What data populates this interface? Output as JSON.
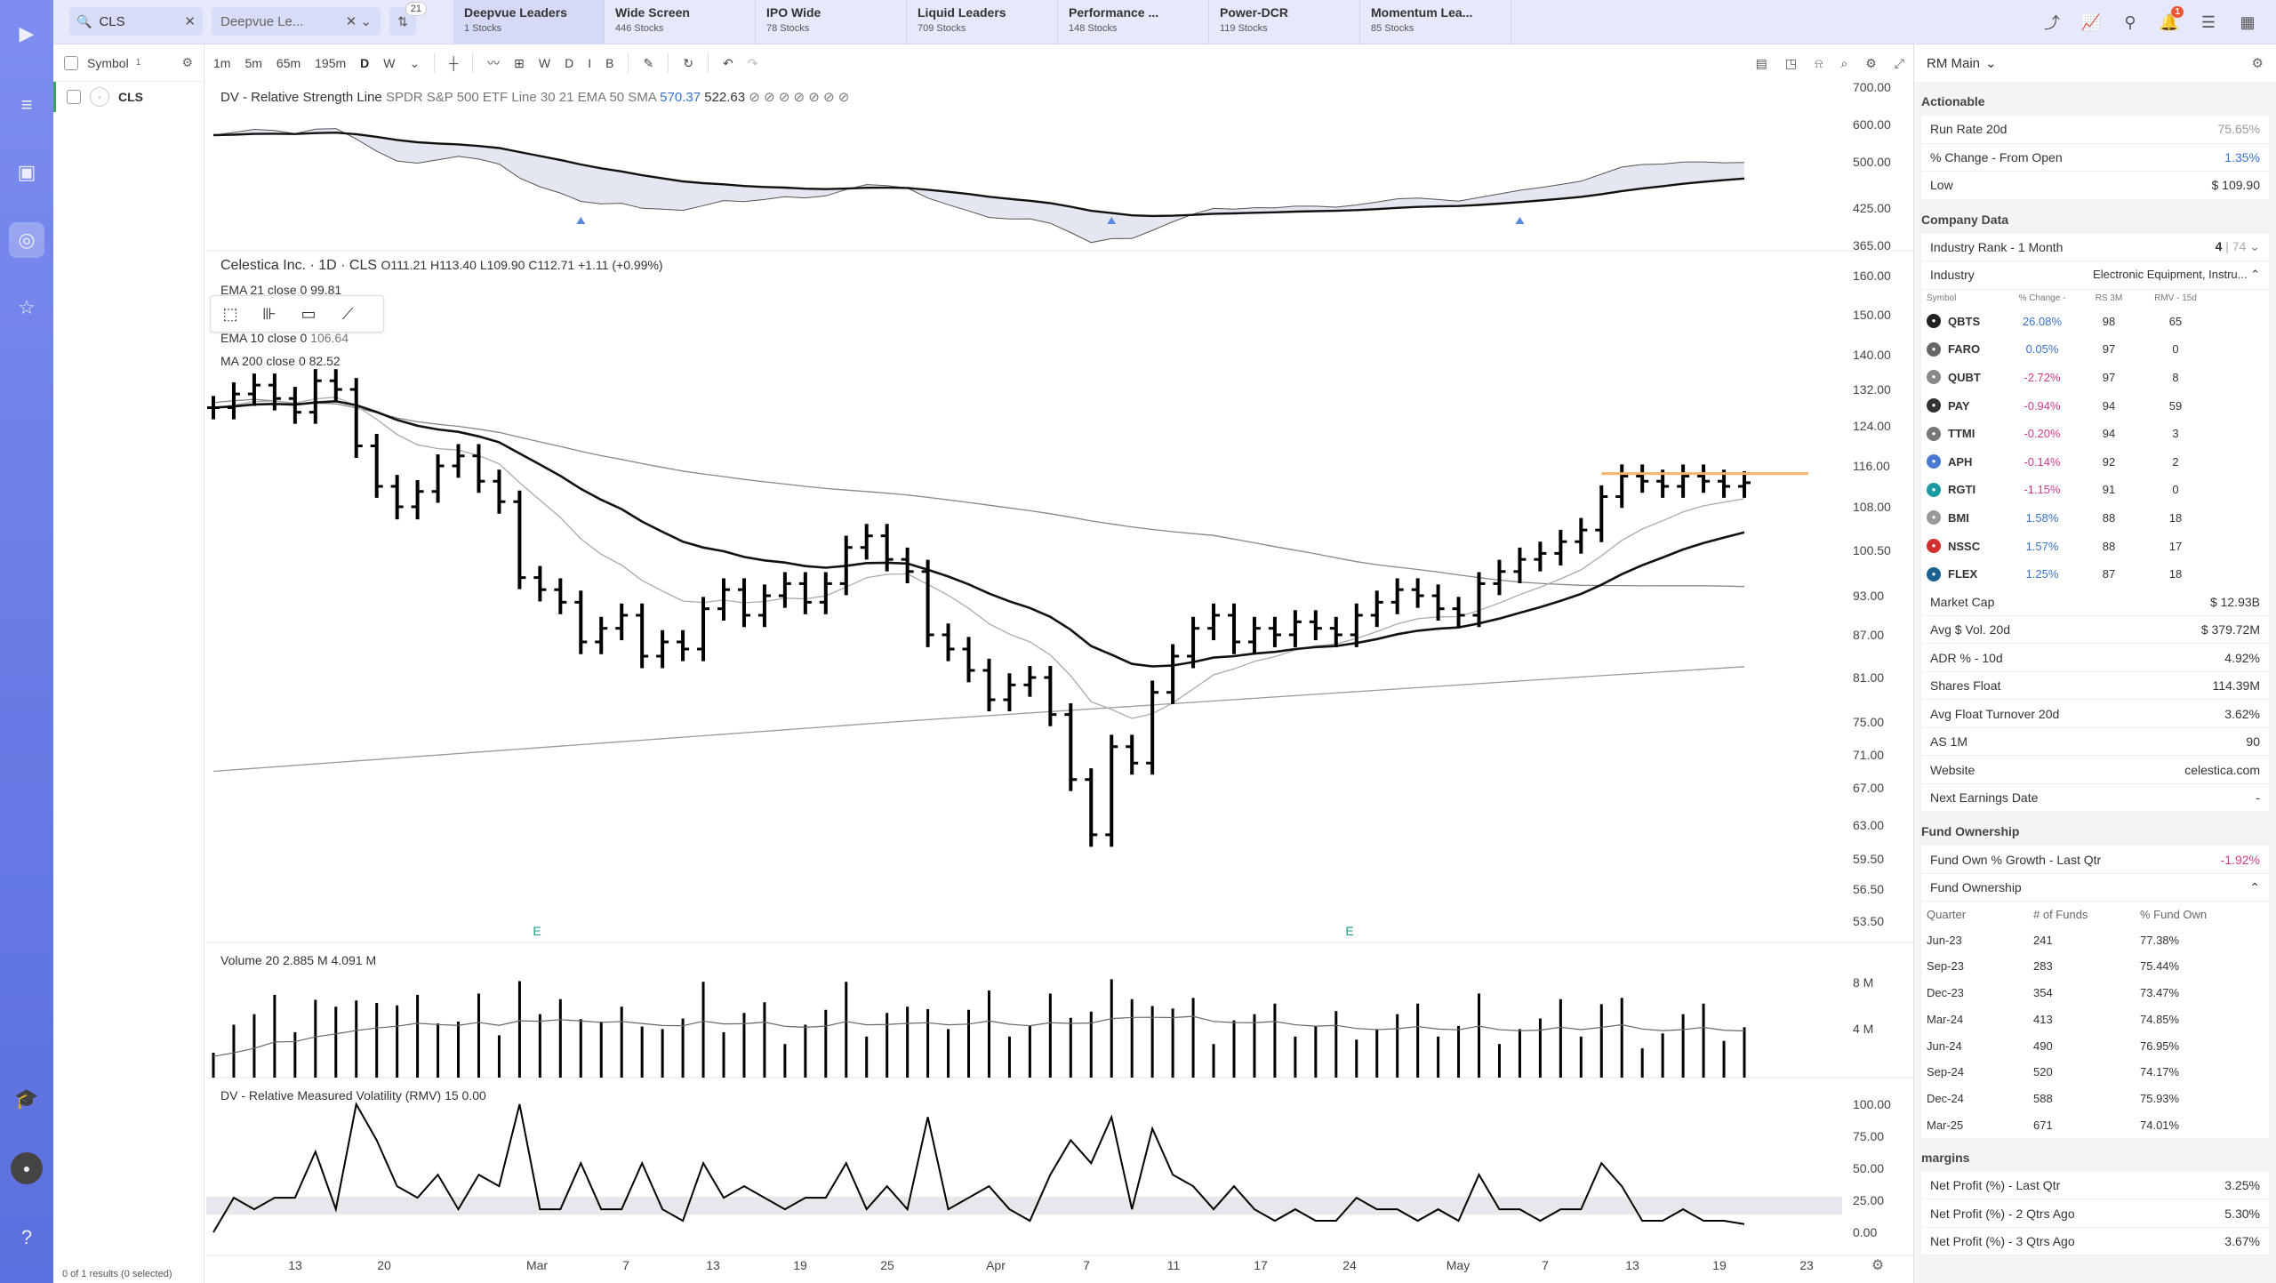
{
  "nav": {
    "items": [
      "logo-icon",
      "menu-icon",
      "layout-icon",
      "target-icon",
      "star-icon",
      "course-icon",
      "avatar",
      "help-icon"
    ]
  },
  "topbar": {
    "search_value": "CLS",
    "watchlist_placeholder": "Deepvue Le...",
    "filter_count": "21",
    "tabs": [
      {
        "title": "Deepvue Leaders",
        "sub": "1 Stocks"
      },
      {
        "title": "Wide Screen",
        "sub": "446 Stocks"
      },
      {
        "title": "IPO Wide",
        "sub": "78 Stocks"
      },
      {
        "title": "Liquid Leaders",
        "sub": "709 Stocks"
      },
      {
        "title": "Performance ...",
        "sub": "148 Stocks"
      },
      {
        "title": "Power-DCR",
        "sub": "119 Stocks"
      },
      {
        "title": "Momentum Lea...",
        "sub": "85 Stocks"
      }
    ],
    "notif_count": "1"
  },
  "watchlist": {
    "header_label": "Symbol",
    "header_count": "1",
    "rows": [
      {
        "symbol": "CLS"
      }
    ],
    "footer": "0 of 1 results (0 selected)"
  },
  "toolbar": {
    "timeframes": [
      "1m",
      "5m",
      "65m",
      "195m",
      "D",
      "W"
    ],
    "active_tf": "D",
    "periods": [
      "W",
      "D",
      "I",
      "B"
    ]
  },
  "chart": {
    "rs_legend": {
      "name": "DV - Relative Strength Line",
      "desc": "SPDR S&P 500 ETF Line 30 21 EMA 50 SMA",
      "v1": "570.37",
      "v2": "522.63"
    },
    "rs_axis": [
      "700.00",
      "600.00",
      "500.00",
      "425.00",
      "365.00"
    ],
    "title": "Celestica Inc. · 1D · CLS",
    "ohlc": "O111.21 H113.40 L109.90 C112.71 +1.11 (+0.99%)",
    "ma_legends": [
      {
        "label": "EMA 21 close 0",
        "value": "99.81"
      },
      {
        "label": "EMA 10 close 0",
        "value": "106.64"
      },
      {
        "label": "MA 200 close 0",
        "value": "82.52"
      }
    ],
    "price_axis": [
      "160.00",
      "150.00",
      "140.00",
      "132.00",
      "124.00",
      "116.00",
      "108.00",
      "100.50",
      "93.00",
      "87.00",
      "81.00",
      "75.00",
      "71.00",
      "67.00",
      "63.00",
      "59.50",
      "56.50",
      "53.50"
    ],
    "earnings_marker": "E",
    "volume_legend": {
      "label": "Volume 20",
      "v1": "2.885 M",
      "v2": "4.091 M"
    },
    "volume_axis": [
      "8 M",
      "4 M"
    ],
    "rmv_legend": {
      "label": "DV - Relative Measured Volatility (RMV) 15",
      "value": "0.00"
    },
    "rmv_axis": [
      "100.00",
      "75.00",
      "50.00",
      "25.00",
      "0.00"
    ],
    "x_labels": [
      "13",
      "20",
      "Mar",
      "7",
      "13",
      "19",
      "25",
      "Apr",
      "7",
      "11",
      "17",
      "24",
      "May",
      "7",
      "13",
      "19",
      "23"
    ]
  },
  "chart_data": {
    "type": "bar",
    "title": "Celestica Inc. · 1D · CLS",
    "note": "Daily OHLC bars from mid Feb to May 20, 2025 with EMA 10, EMA 21, MA 50, MA 200; volume and RMV panes",
    "close_series": [
      128,
      131,
      133,
      130,
      127,
      134,
      132,
      120,
      112,
      108,
      111,
      116,
      118,
      113,
      109,
      96,
      94,
      92,
      86,
      88,
      90,
      84,
      86,
      85,
      91,
      94,
      90,
      93,
      95,
      92,
      95,
      101,
      103,
      99,
      97,
      87,
      85,
      82,
      78,
      80,
      81,
      76,
      68,
      62,
      72,
      70,
      79,
      84,
      88,
      90,
      86,
      88,
      87,
      89,
      88,
      87,
      90,
      92,
      94,
      93,
      91,
      90,
      95,
      97,
      99,
      100,
      102,
      104,
      110,
      114,
      113,
      112,
      114,
      113,
      112,
      112.71
    ],
    "ema21_last": 99.81,
    "ema10_last": 106.64,
    "ma200_last": 82.52,
    "volume_last_m": 2.885,
    "volume_avg_m": 4.091,
    "ylim": [
      53.5,
      160
    ]
  },
  "rpanel": {
    "title": "RM Main",
    "actionable": {
      "title": "Actionable",
      "rows": [
        {
          "k": "Run Rate 20d",
          "v": "75.65%",
          "c": "muted"
        },
        {
          "k": "% Change - From Open",
          "v": "1.35%",
          "c": "pos"
        },
        {
          "k": "Low",
          "v": "$ 109.90",
          "c": ""
        }
      ]
    },
    "company": {
      "title": "Company Data",
      "industry_rank_label": "Industry Rank - 1 Month",
      "industry_rank_value": "4",
      "industry_rank_total": "74",
      "industry_label": "Industry",
      "industry_value": "Electronic Equipment, Instru...",
      "ind_cols": [
        "Symbol",
        "% Change -",
        "RS 3M",
        "RMV - 15d"
      ],
      "ind_rows": [
        {
          "sym": "QBTS",
          "ch": "26.08%",
          "rs": "98",
          "rmv": "65",
          "c": "pos",
          "color": "#222"
        },
        {
          "sym": "FARO",
          "ch": "0.05%",
          "rs": "97",
          "rmv": "0",
          "c": "pos",
          "color": "#666"
        },
        {
          "sym": "QUBT",
          "ch": "-2.72%",
          "rs": "97",
          "rmv": "8",
          "c": "neg",
          "color": "#888"
        },
        {
          "sym": "PAY",
          "ch": "-0.94%",
          "rs": "94",
          "rmv": "59",
          "c": "neg",
          "color": "#333"
        },
        {
          "sym": "TTMI",
          "ch": "-0.20%",
          "rs": "94",
          "rmv": "3",
          "c": "neg",
          "color": "#777"
        },
        {
          "sym": "APH",
          "ch": "-0.14%",
          "rs": "92",
          "rmv": "2",
          "c": "neg",
          "color": "#4a7ad0"
        },
        {
          "sym": "RGTI",
          "ch": "-1.15%",
          "rs": "91",
          "rmv": "0",
          "c": "neg",
          "color": "#1a9aa0"
        },
        {
          "sym": "BMI",
          "ch": "1.58%",
          "rs": "88",
          "rmv": "18",
          "c": "pos",
          "color": "#999"
        },
        {
          "sym": "NSSC",
          "ch": "1.57%",
          "rs": "88",
          "rmv": "17",
          "c": "pos",
          "color": "#d03030"
        },
        {
          "sym": "FLEX",
          "ch": "1.25%",
          "rs": "87",
          "rmv": "18",
          "c": "pos",
          "color": "#1a6090"
        }
      ],
      "rows": [
        {
          "k": "Market Cap",
          "v": "$ 12.93B"
        },
        {
          "k": "Avg $ Vol. 20d",
          "v": "$ 379.72M"
        },
        {
          "k": "ADR % - 10d",
          "v": "4.92%"
        },
        {
          "k": "Shares Float",
          "v": "114.39M"
        },
        {
          "k": "Avg Float Turnover 20d",
          "v": "3.62%"
        },
        {
          "k": "AS 1M",
          "v": "90"
        },
        {
          "k": "Website",
          "v": "celestica.com"
        },
        {
          "k": "Next Earnings Date",
          "v": "-"
        }
      ]
    },
    "fund": {
      "title": "Fund Ownership",
      "growth_label": "Fund Own % Growth - Last Qtr",
      "growth_value": "-1.92%",
      "sub_label": "Fund Ownership",
      "cols": [
        "Quarter",
        "# of Funds",
        "% Fund Own"
      ],
      "rows": [
        {
          "q": "Jun-23",
          "n": "241",
          "p": "77.38%"
        },
        {
          "q": "Sep-23",
          "n": "283",
          "p": "75.44%"
        },
        {
          "q": "Dec-23",
          "n": "354",
          "p": "73.47%"
        },
        {
          "q": "Mar-24",
          "n": "413",
          "p": "74.85%"
        },
        {
          "q": "Jun-24",
          "n": "490",
          "p": "76.95%"
        },
        {
          "q": "Sep-24",
          "n": "520",
          "p": "74.17%"
        },
        {
          "q": "Dec-24",
          "n": "588",
          "p": "75.93%"
        },
        {
          "q": "Mar-25",
          "n": "671",
          "p": "74.01%"
        }
      ]
    },
    "margins": {
      "title": "margins",
      "rows": [
        {
          "k": "Net Profit (%) - Last Qtr",
          "v": "3.25%"
        },
        {
          "k": "Net Profit (%) - 2 Qtrs Ago",
          "v": "5.30%"
        },
        {
          "k": "Net Profit (%) - 3 Qtrs Ago",
          "v": "3.67%"
        }
      ]
    }
  }
}
